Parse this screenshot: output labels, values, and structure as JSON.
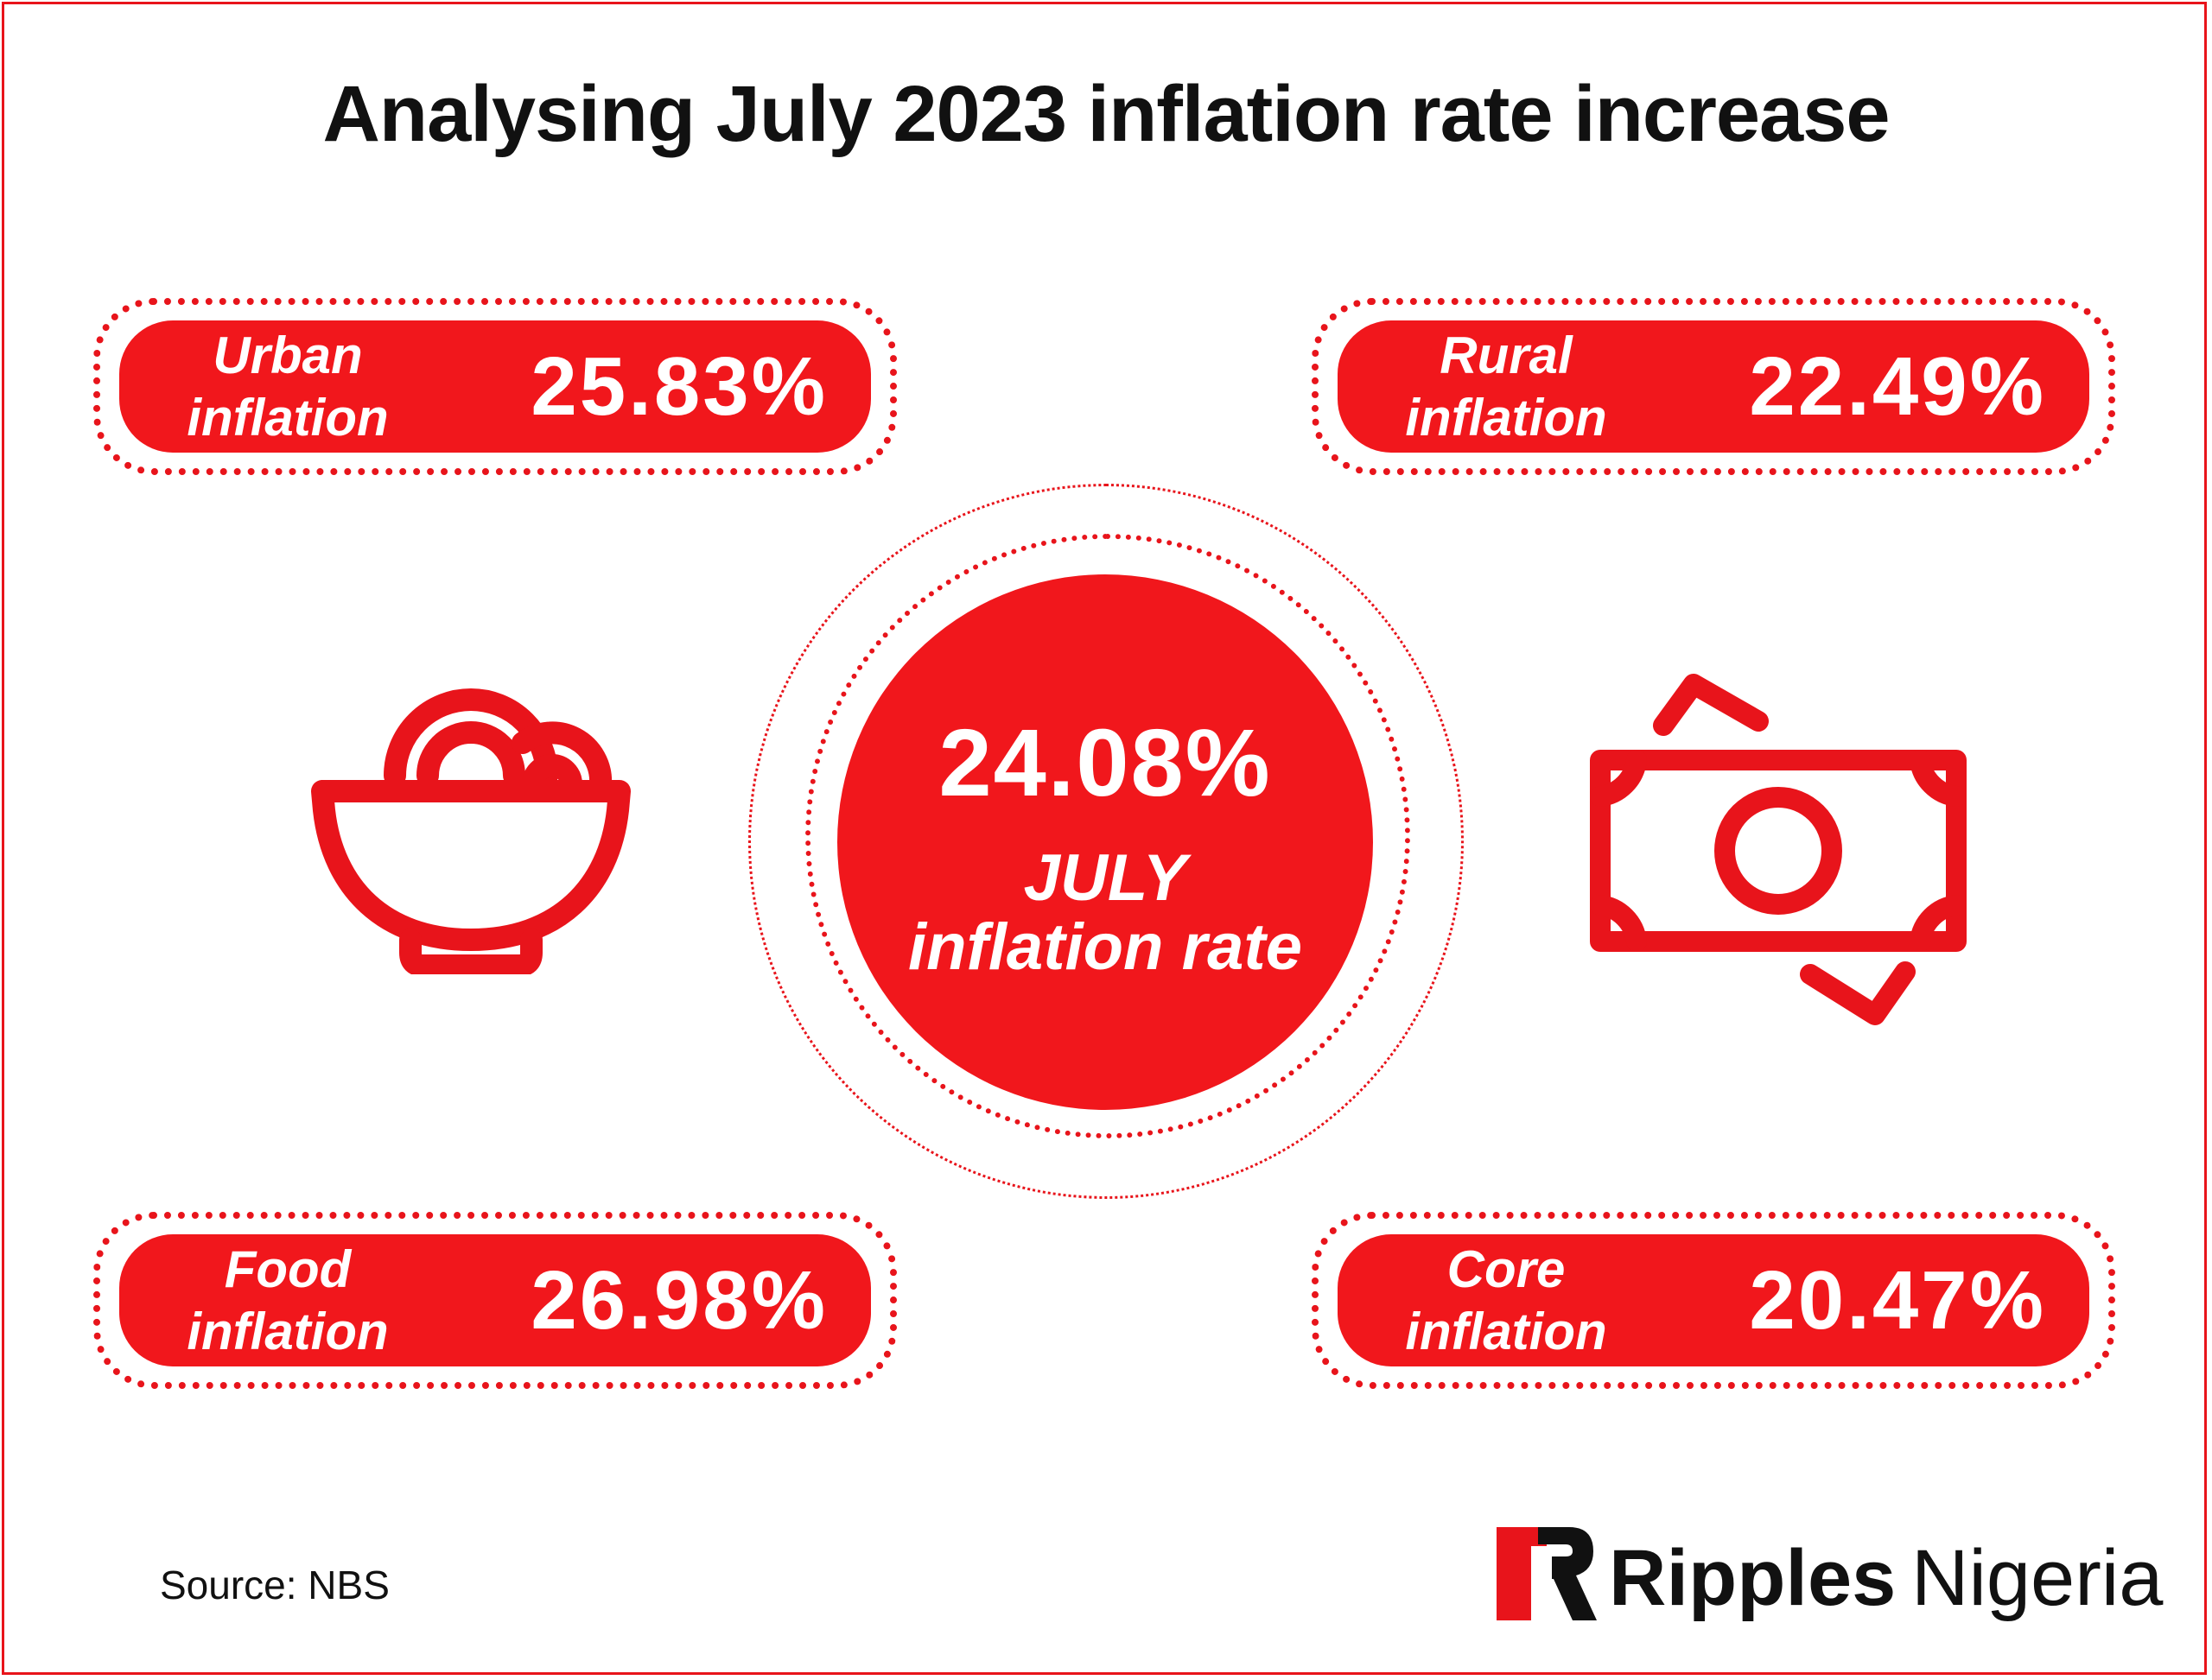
{
  "title": "Analysing July 2023 inflation rate increase",
  "cards": {
    "urban": {
      "label_line1": "Urban",
      "label_line2": "inflation",
      "value": "25.83%"
    },
    "rural": {
      "label_line1": "Rural",
      "label_line2": "inflation",
      "value": "22.49%"
    },
    "food": {
      "label_line1": "Food",
      "label_line2": "inflation",
      "value": "26.98%"
    },
    "core": {
      "label_line1": "Core",
      "label_line2": "inflation",
      "value": "20.47%"
    }
  },
  "center": {
    "value": "24.08%",
    "line1": "JULY",
    "line2": "inflation rate"
  },
  "source": "Source: NBS",
  "logo": {
    "part1": "Ripples",
    "part2": "Nigeria"
  },
  "icons": {
    "left": "food-bowl-icon",
    "right": "money-exchange-icon"
  },
  "colors": {
    "accent": "#f1171c",
    "text": "#111111",
    "background": "#ffffff"
  }
}
